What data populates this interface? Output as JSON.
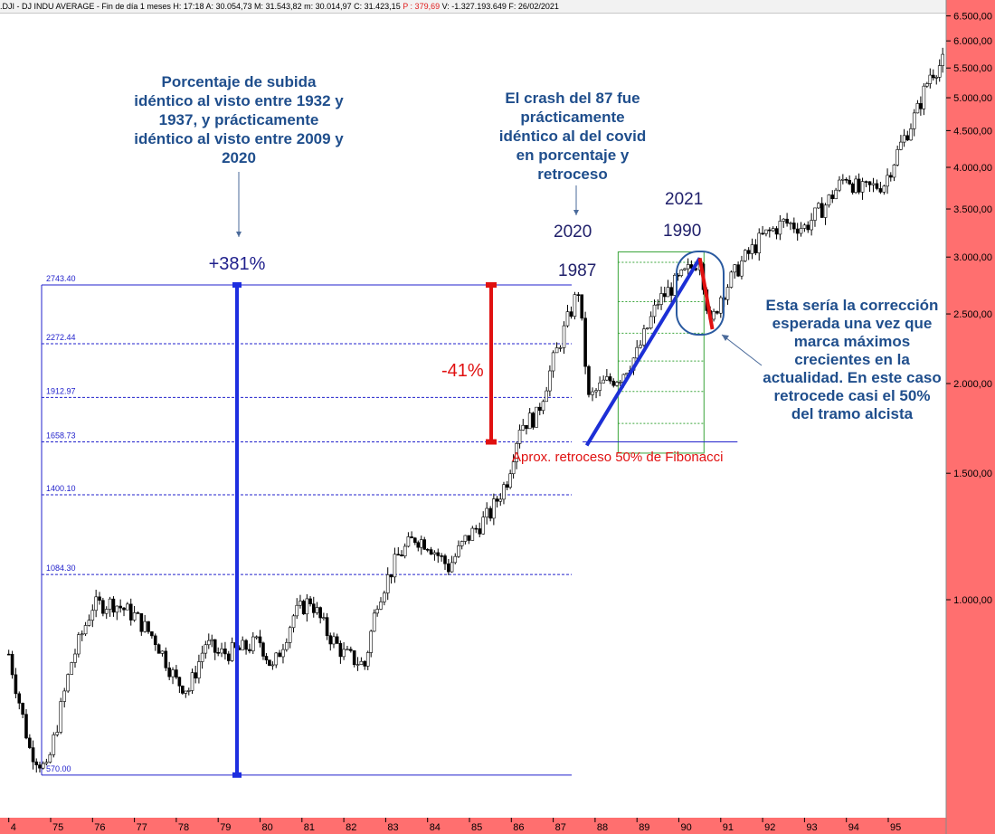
{
  "header": {
    "symbol": ".DJI - DJ INDU AVERAGE",
    "period": "Fin de día 1 meses",
    "high": "H: 17:18",
    "open": "A: 30.054,73",
    "max": "M: 31.543,82",
    "min": "m: 30.014,97",
    "close": "C: 31.423,15",
    "change": "P : 379,69",
    "volume": "V: -1.327.193.649",
    "date": "F: 26/02/2021"
  },
  "colors": {
    "price_axis_bg": "#ff6f6f",
    "time_axis_bg": "#ff6f6f",
    "fib_lines": "#2222cc",
    "annotation_blue": "#1f4e8c",
    "annotation_red": "#e02020",
    "impulse_line": "#1c2fd6",
    "box_green": "#3aa53a"
  },
  "chart_data": {
    "type": "candlestick",
    "title": "",
    "y_scale": "log",
    "ylim": [
      500,
      6500
    ],
    "y_ticks": [
      "6.500,00",
      "6.000,00",
      "5.500,00",
      "5.000,00",
      "4.500,00",
      "4.000,00",
      "3.500,00",
      "3.000,00",
      "2.500,00",
      "2.000,00",
      "1.500,00",
      "1.000,00"
    ],
    "x_ticks": [
      "4",
      "75",
      "76",
      "77",
      "78",
      "79",
      "80",
      "81",
      "82",
      "83",
      "84",
      "85",
      "86",
      "87",
      "88",
      "89",
      "90",
      "91",
      "92",
      "93",
      "94",
      "95"
    ],
    "series": [
      {
        "values_approx_monthly_close": [
          [
            1974.0,
            840
          ],
          [
            1974.5,
            620
          ],
          [
            1974.9,
            577
          ],
          [
            1975.5,
            820
          ],
          [
            1976.0,
            980
          ],
          [
            1976.5,
            990
          ],
          [
            1977.0,
            950
          ],
          [
            1977.5,
            880
          ],
          [
            1978.0,
            770
          ],
          [
            1978.3,
            750
          ],
          [
            1978.7,
            870
          ],
          [
            1979.0,
            840
          ],
          [
            1979.5,
            850
          ],
          [
            1980.0,
            875
          ],
          [
            1980.3,
            800
          ],
          [
            1980.8,
            950
          ],
          [
            1981.2,
            1000
          ],
          [
            1981.6,
            900
          ],
          [
            1982.0,
            840
          ],
          [
            1982.5,
            810
          ],
          [
            1982.8,
            1000
          ],
          [
            1983.3,
            1150
          ],
          [
            1983.7,
            1220
          ],
          [
            1984.0,
            1200
          ],
          [
            1984.5,
            1110
          ],
          [
            1984.9,
            1210
          ],
          [
            1985.5,
            1320
          ],
          [
            1985.9,
            1470
          ],
          [
            1986.2,
            1750
          ],
          [
            1986.6,
            1800
          ],
          [
            1987.0,
            2150
          ],
          [
            1987.6,
            2700
          ],
          [
            1987.85,
            1900
          ],
          [
            1988.2,
            2000
          ],
          [
            1988.6,
            2050
          ],
          [
            1989.0,
            2200
          ],
          [
            1989.5,
            2600
          ],
          [
            1989.9,
            2750
          ],
          [
            1990.3,
            2900
          ],
          [
            1990.5,
            3000
          ],
          [
            1990.75,
            2400
          ],
          [
            1991.0,
            2650
          ],
          [
            1991.5,
            2950
          ],
          [
            1992.0,
            3200
          ],
          [
            1992.5,
            3350
          ],
          [
            1993.0,
            3300
          ],
          [
            1993.5,
            3550
          ],
          [
            1994.0,
            3900
          ],
          [
            1994.3,
            3700
          ],
          [
            1994.9,
            3800
          ],
          [
            1995.3,
            4300
          ],
          [
            1995.7,
            4800
          ],
          [
            1996.0,
            5400
          ],
          [
            1996.3,
            5600
          ]
        ]
      }
    ],
    "fib_levels": [
      {
        "label": "2743.40",
        "value": 2743.4
      },
      {
        "label": "2272.44",
        "value": 2272.44
      },
      {
        "label": "1912.97",
        "value": 1912.97
      },
      {
        "label": "1658.73",
        "value": 1658.73
      },
      {
        "label": "1400.10",
        "value": 1400.1
      },
      {
        "label": "1084.30",
        "value": 1084.3
      },
      {
        "label": "570.00",
        "value": 570.0
      }
    ],
    "annotations": {
      "pct_rise_text": "Porcentaje de subida idéntico al visto entre 1932 y 1937, y prácticamente idéntico al visto entre 2009 y 2020",
      "pct_rise_value": "+381%",
      "crash_text": "El crash del 87 fue prácticamente idéntico al del covid en porcentaje y retroceso",
      "label_2020": "2020",
      "label_1987": "1987",
      "label_2021": "2021",
      "label_1990": "1990",
      "drop_value": "-41%",
      "fib_note": "Aprox. retroceso 50% de Fibonacci",
      "correction_text": "Esta sería la corrección esperada una vez que marca máximos crecientes en la actualidad. En este caso retrocede casi el 50% del tramo alcista"
    }
  }
}
